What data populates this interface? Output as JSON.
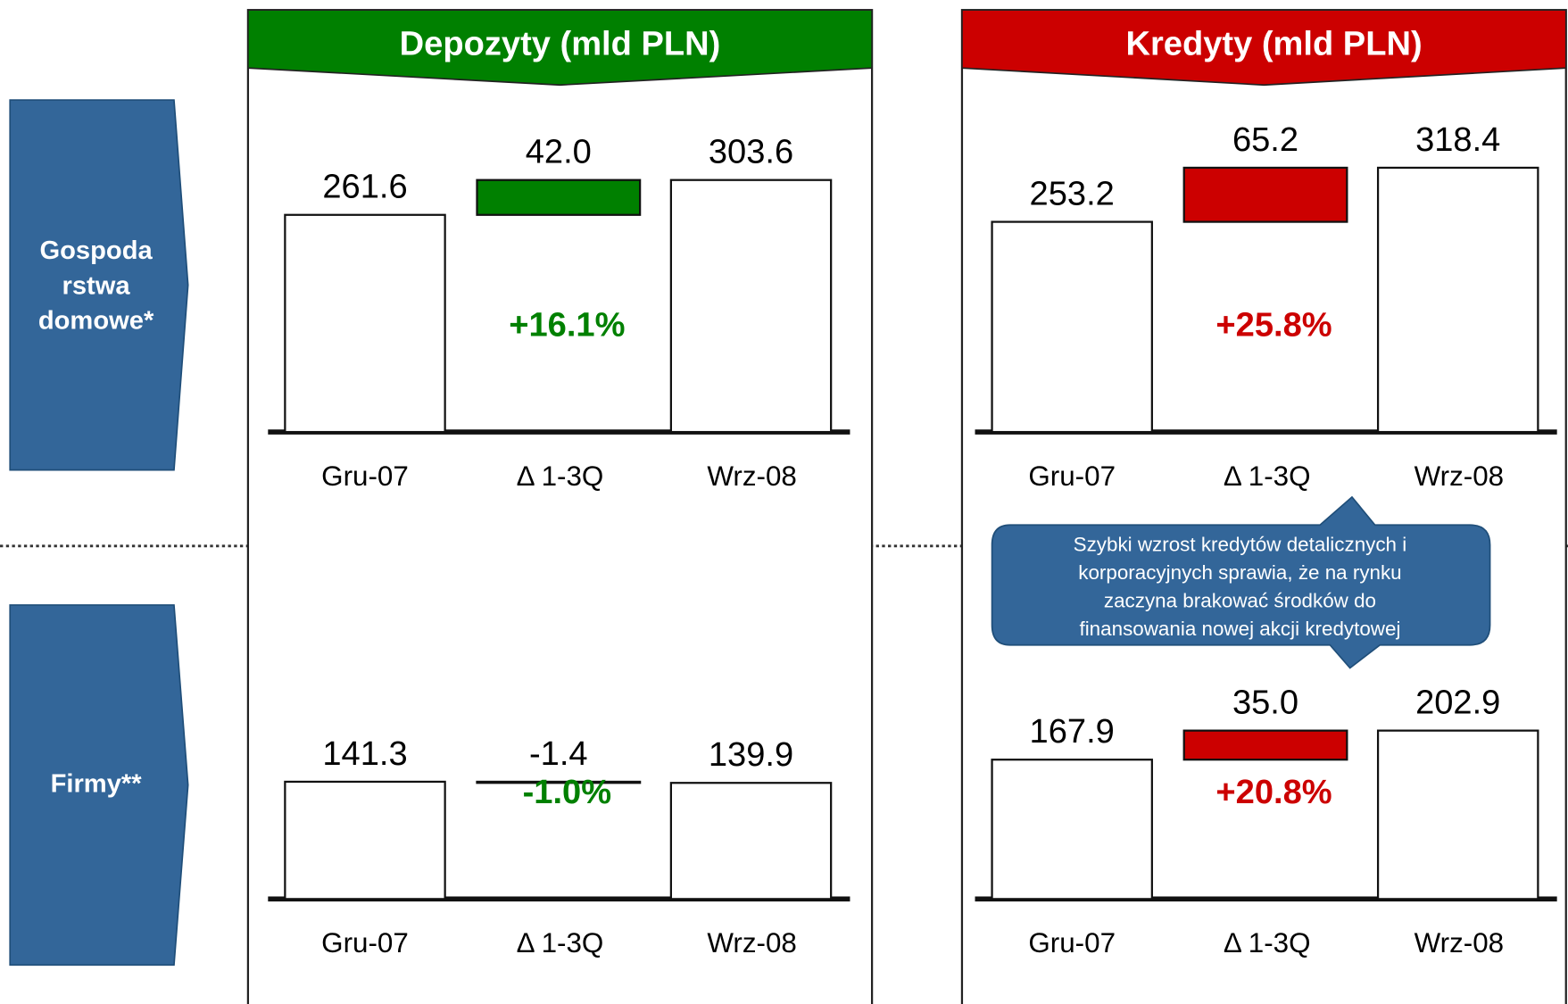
{
  "panels": [
    "Depozyty (mld PLN)",
    "Kredyty (mld PLN)"
  ],
  "row_labels": [
    [
      "Gospoda",
      "rstwa",
      "domowe*"
    ],
    [
      "Firmy**"
    ]
  ],
  "callout": [
    "Szybki wzrost kredytów detalicznych i",
    "korporacyjnych sprawia, że na rynku",
    "zaczyna brakować środków do",
    "finansowania nowej akcji kredytowej"
  ],
  "chart_data": [
    {
      "type": "waterfall",
      "categories": [
        "Gru-07",
        "Δ 1-3Q",
        "Wrz-08"
      ],
      "values": [
        261.6,
        42.0,
        303.6
      ],
      "value_labels": [
        "261.6",
        "42.0",
        "303.6"
      ],
      "annotation": "+16.1%",
      "color": "#008000"
    },
    {
      "type": "waterfall",
      "categories": [
        "Gru-07",
        "Δ 1-3Q",
        "Wrz-08"
      ],
      "values": [
        253.2,
        65.2,
        318.4
      ],
      "value_labels": [
        "253.2",
        "65.2",
        "318.4"
      ],
      "annotation": "+25.8%",
      "color": "#cc0000"
    },
    {
      "type": "waterfall",
      "categories": [
        "Gru-07",
        "Δ 1-3Q",
        "Wrz-08"
      ],
      "values": [
        141.3,
        -1.4,
        139.9
      ],
      "value_labels": [
        "141.3",
        "-1.4",
        "139.9"
      ],
      "annotation": "-1.0%",
      "color": "#008000"
    },
    {
      "type": "waterfall",
      "categories": [
        "Gru-07",
        "Δ 1-3Q",
        "Wrz-08"
      ],
      "values": [
        167.9,
        35.0,
        202.9
      ],
      "value_labels": [
        "167.9",
        "35.0",
        "202.9"
      ],
      "annotation": "+20.8%",
      "color": "#cc0000"
    }
  ]
}
